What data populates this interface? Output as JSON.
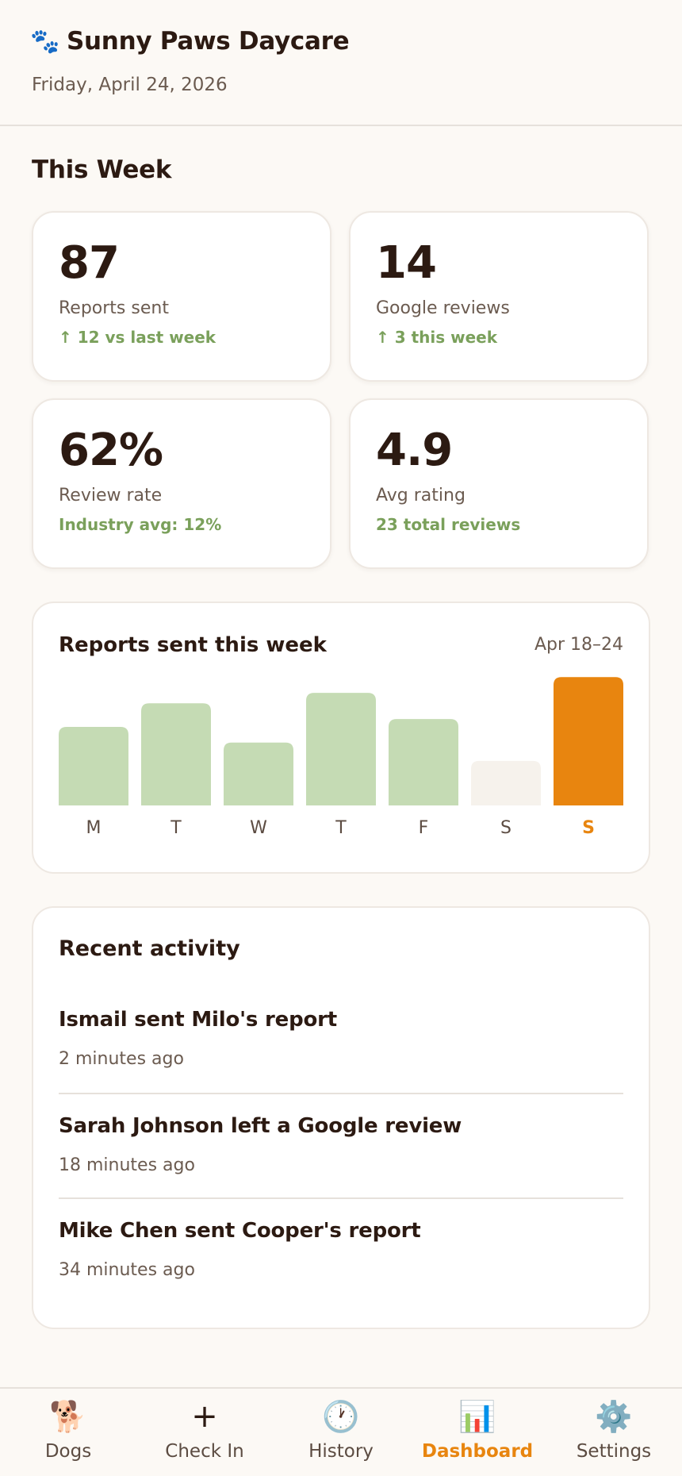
{
  "header": {
    "paw_icon": "🐾",
    "title": "Sunny Paws Daycare",
    "date": "Friday, April 24, 2026"
  },
  "section_title": "This Week",
  "stats": [
    {
      "value": "87",
      "label": "Reports sent",
      "trend": "↑ 12 vs last week"
    },
    {
      "value": "14",
      "label": "Google reviews",
      "trend": "↑ 3 this week"
    },
    {
      "value": "62%",
      "label": "Review rate",
      "trend": "Industry avg: 12%"
    },
    {
      "value": "4.9",
      "label": "Avg rating",
      "trend": "23 total reviews"
    }
  ],
  "colors": {
    "accent": "#e8850f",
    "bar": "#c5dbb4",
    "bar_empty": "#f6f2ec",
    "trend": "#7aa05b"
  },
  "chart": {
    "title": "Reports sent this week",
    "range": "Apr 18–24"
  },
  "chart_data": {
    "type": "bar",
    "categories": [
      "M",
      "T",
      "W",
      "T",
      "F",
      "S",
      "S"
    ],
    "values": [
      15,
      19.5,
      12,
      21.5,
      16.5,
      8.5,
      24.5
    ],
    "highlight_index": 6,
    "ylim": [
      0,
      25
    ],
    "grid": false
  },
  "activity": {
    "heading": "Recent activity",
    "items": [
      {
        "text": "Ismail sent Milo's report",
        "time": "2 minutes ago"
      },
      {
        "text": "Sarah Johnson left a Google review",
        "time": "18 minutes ago"
      },
      {
        "text": "Mike Chen sent Cooper's report",
        "time": "34 minutes ago"
      }
    ]
  },
  "nav": {
    "items": [
      {
        "icon": "🐕",
        "icon_name": "dog-icon",
        "label": "Dogs"
      },
      {
        "icon": "+",
        "icon_name": "plus-icon",
        "label": "Check In"
      },
      {
        "icon": "🕐",
        "icon_name": "clock-icon",
        "label": "History"
      },
      {
        "icon": "📊",
        "icon_name": "bar-chart-icon",
        "label": "Dashboard"
      },
      {
        "icon": "⚙️",
        "icon_name": "gear-icon",
        "label": "Settings"
      }
    ],
    "active_index": 3
  }
}
